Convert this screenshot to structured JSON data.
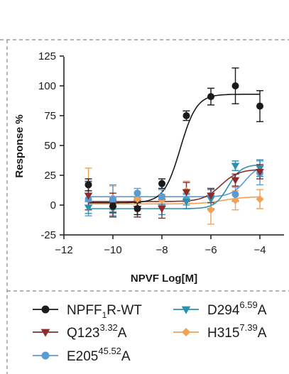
{
  "chart_data": {
    "type": "scatter",
    "xlabel": "NPVF Log[M]",
    "ylabel": "Response %",
    "xlim": [
      -12,
      -3.2
    ],
    "ylim": [
      -25,
      130
    ],
    "xticks": [
      -12,
      -10,
      -8,
      -6,
      -4
    ],
    "yticks": [
      -25,
      0,
      25,
      50,
      75,
      100,
      125
    ],
    "legend_placement": "bottom",
    "series": [
      {
        "key": "wt",
        "label_main": "NPFF",
        "label_sub": "1",
        "label_tail": "R-WT",
        "label_sup": "",
        "color": "#1a1a1a",
        "marker": "circle",
        "x": [
          -11,
          -10,
          -9,
          -8,
          -7,
          -6,
          -5,
          -4
        ],
        "y": [
          17,
          -1,
          -3,
          18,
          75,
          91,
          100,
          83
        ],
        "err": [
          5,
          5,
          5,
          4,
          4,
          7,
          15,
          13
        ],
        "fit": {
          "bottom": 2,
          "top": 93,
          "logec50": -7.25,
          "hill": 1.3
        }
      },
      {
        "key": "q123",
        "label_main": "Q123",
        "label_sub": "",
        "label_tail": "A",
        "label_sup": "3.32",
        "color": "#8a2a2a",
        "marker": "triangle-down",
        "x": [
          -11,
          -10,
          -9,
          -8,
          -7,
          -6,
          -5,
          -4
        ],
        "y": [
          8,
          0,
          -3,
          -3,
          11,
          8,
          21,
          28
        ],
        "err": [
          12,
          10,
          7,
          8,
          8,
          6,
          5,
          6
        ],
        "fit": {
          "bottom": 3,
          "top": 30,
          "logec50": -5.6,
          "hill": 1.2
        }
      },
      {
        "key": "e205",
        "label_main": "E205",
        "label_sub": "",
        "label_tail": "A",
        "label_sup": "45.52",
        "color": "#5b9bd5",
        "marker": "circle",
        "x": [
          -11,
          -10,
          -9,
          -8,
          -7,
          -6,
          -5,
          -4
        ],
        "y": [
          5,
          5,
          10,
          7,
          5,
          8,
          9,
          27
        ],
        "err": [
          14,
          12,
          4,
          6,
          5,
          6,
          6,
          10
        ],
        "fit": {
          "bottom": 7,
          "top": 34,
          "logec50": -4.6,
          "hill": 1.5
        }
      },
      {
        "key": "d294",
        "label_main": "D294",
        "label_sub": "",
        "label_tail": "A",
        "label_sup": "6.59",
        "color": "#2e8fb0",
        "marker": "triangle-down",
        "x": [
          -11,
          -10,
          -9,
          -8,
          -7,
          -6,
          -5,
          -4
        ],
        "y": [
          -2,
          -3,
          -3,
          -2,
          3,
          5,
          33,
          31
        ],
        "err": [
          5,
          6,
          7,
          6,
          6,
          8,
          4,
          7
        ],
        "fit": {
          "bottom": -3,
          "top": 34,
          "logec50": -5.3,
          "hill": 1.6
        }
      },
      {
        "key": "h315",
        "label_main": "H315",
        "label_sub": "",
        "label_tail": "A",
        "label_sup": "7.39",
        "color": "#f2a155",
        "marker": "diamond",
        "x": [
          -11,
          -10,
          -9,
          -8,
          -7,
          -6,
          -5,
          -4
        ],
        "y": [
          17,
          6,
          5,
          4,
          12,
          -4,
          4,
          5
        ],
        "err": [
          14,
          10,
          6,
          5,
          8,
          12,
          8,
          8
        ],
        "fit": {
          "bottom": 1,
          "top": 7,
          "logec50": -5.5,
          "hill": 1.0
        }
      }
    ]
  }
}
